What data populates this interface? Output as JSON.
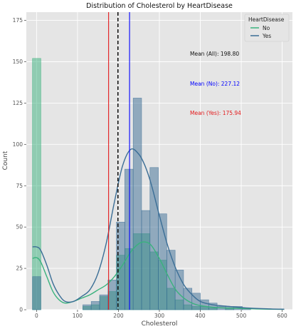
{
  "chart_data": {
    "type": "histogram",
    "title": "Distribution of Cholesterol by HeartDisease",
    "xlabel": "Cholesterol",
    "ylabel": "Count",
    "xlim": [
      -25,
      625
    ],
    "ylim": [
      0,
      180
    ],
    "x_ticks": [
      0,
      100,
      200,
      300,
      400,
      500,
      600
    ],
    "y_ticks": [
      0,
      25,
      50,
      75,
      100,
      125,
      150,
      175
    ],
    "grid": true,
    "legend": {
      "title": "HeartDisease",
      "placement": "top-right"
    },
    "bin_width": 20.5,
    "bin_edges": [
      -10,
      10.5,
      31,
      51.5,
      72,
      92.5,
      113,
      133.5,
      154,
      174.5,
      195,
      215.5,
      236,
      256.5,
      277,
      297.5,
      318,
      338.5,
      359,
      379.5,
      400,
      420.5,
      441,
      461.5,
      482,
      502.5,
      523,
      543.5,
      564,
      584.5,
      605
    ],
    "series": [
      {
        "name": "No",
        "color": "#3ab27d",
        "counts": [
          152,
          0,
          0,
          0,
          0,
          0,
          2,
          3,
          8,
          11,
          33,
          37,
          46,
          46,
          35,
          30,
          13,
          6,
          3,
          2,
          2,
          1,
          0,
          1,
          0,
          0,
          0,
          0,
          0,
          0
        ],
        "kde": [
          [
            -10,
            31
          ],
          [
            0,
            31.5
          ],
          [
            10,
            29
          ],
          [
            25,
            20
          ],
          [
            40,
            11
          ],
          [
            55,
            6
          ],
          [
            70,
            4
          ],
          [
            90,
            5
          ],
          [
            110,
            7
          ],
          [
            130,
            9
          ],
          [
            150,
            12
          ],
          [
            170,
            15
          ],
          [
            190,
            20
          ],
          [
            210,
            27
          ],
          [
            230,
            35
          ],
          [
            250,
            40
          ],
          [
            265,
            41
          ],
          [
            280,
            39
          ],
          [
            300,
            31
          ],
          [
            320,
            21
          ],
          [
            340,
            12
          ],
          [
            360,
            7
          ],
          [
            380,
            4
          ],
          [
            400,
            2.5
          ],
          [
            430,
            1.5
          ],
          [
            470,
            1
          ],
          [
            520,
            0.6
          ],
          [
            570,
            0.3
          ],
          [
            605,
            0.2
          ]
        ]
      },
      {
        "name": "Yes",
        "color": "#3b6e96",
        "counts": [
          20,
          0,
          0,
          0,
          0,
          0,
          3,
          5,
          9,
          18,
          53,
          85,
          128,
          60,
          86,
          58,
          36,
          24,
          13,
          10,
          6,
          4,
          2,
          2,
          2,
          1,
          0,
          0,
          0,
          0
        ],
        "kde": [
          [
            -10,
            38
          ],
          [
            0,
            38
          ],
          [
            10,
            36
          ],
          [
            25,
            27
          ],
          [
            40,
            16
          ],
          [
            55,
            9
          ],
          [
            70,
            5
          ],
          [
            90,
            5
          ],
          [
            110,
            8
          ],
          [
            130,
            12
          ],
          [
            150,
            22
          ],
          [
            170,
            40
          ],
          [
            190,
            65
          ],
          [
            210,
            87
          ],
          [
            230,
            97
          ],
          [
            250,
            94
          ],
          [
            265,
            87
          ],
          [
            280,
            76
          ],
          [
            300,
            57
          ],
          [
            320,
            39
          ],
          [
            340,
            25
          ],
          [
            360,
            15
          ],
          [
            380,
            9
          ],
          [
            400,
            5
          ],
          [
            430,
            3
          ],
          [
            470,
            2
          ],
          [
            520,
            1
          ],
          [
            570,
            0.5
          ],
          [
            605,
            0.3
          ]
        ]
      }
    ],
    "vlines": [
      {
        "x": 198.8,
        "color": "#111111",
        "style": "dashed"
      },
      {
        "x": 227.12,
        "color": "#0000ff",
        "style": "solid"
      },
      {
        "x": 175.94,
        "color": "#e41a1c",
        "style": "solid"
      }
    ],
    "annotations": [
      {
        "text": "Mean (All): 198.80",
        "color": "#111111"
      },
      {
        "text": "Mean (No): 227.12",
        "color": "#0000ff"
      },
      {
        "text": "Mean (Yes): 175.94",
        "color": "#e41a1c"
      }
    ]
  }
}
